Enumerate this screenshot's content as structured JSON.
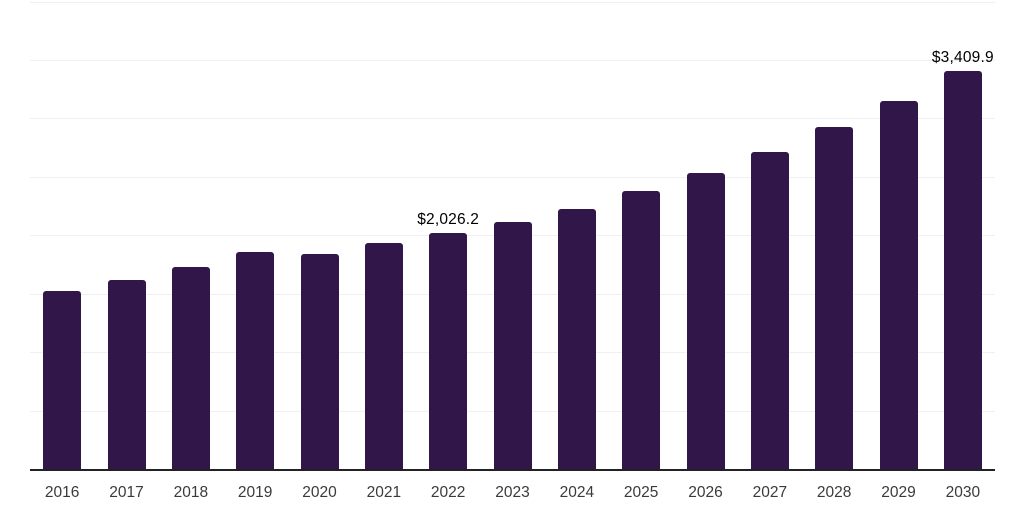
{
  "colors": {
    "background": "#ffffff",
    "bar": "#31164a",
    "gridline": "#f0f0f2",
    "axis_line": "#222222",
    "tick_text": "#3a3a3a",
    "data_label_text": "#000000"
  },
  "chart_data": {
    "type": "bar",
    "categories": [
      "2016",
      "2017",
      "2018",
      "2019",
      "2020",
      "2021",
      "2022",
      "2023",
      "2024",
      "2025",
      "2026",
      "2027",
      "2028",
      "2029",
      "2030"
    ],
    "values": [
      1525,
      1620,
      1730,
      1865,
      1845,
      1940,
      2026.2,
      2115,
      2225,
      2380,
      2535,
      2720,
      2930,
      3150,
      3409.9
    ],
    "annotations": [
      {
        "category": "2022",
        "text": "$2,026.2"
      },
      {
        "category": "2030",
        "text": "$3,409.9"
      }
    ],
    "xlabel": "",
    "ylabel": "",
    "ylim": [
      0,
      4000
    ],
    "gridline_step": 500,
    "grid": true,
    "y_tick_labels_visible": false,
    "legend": "none"
  }
}
